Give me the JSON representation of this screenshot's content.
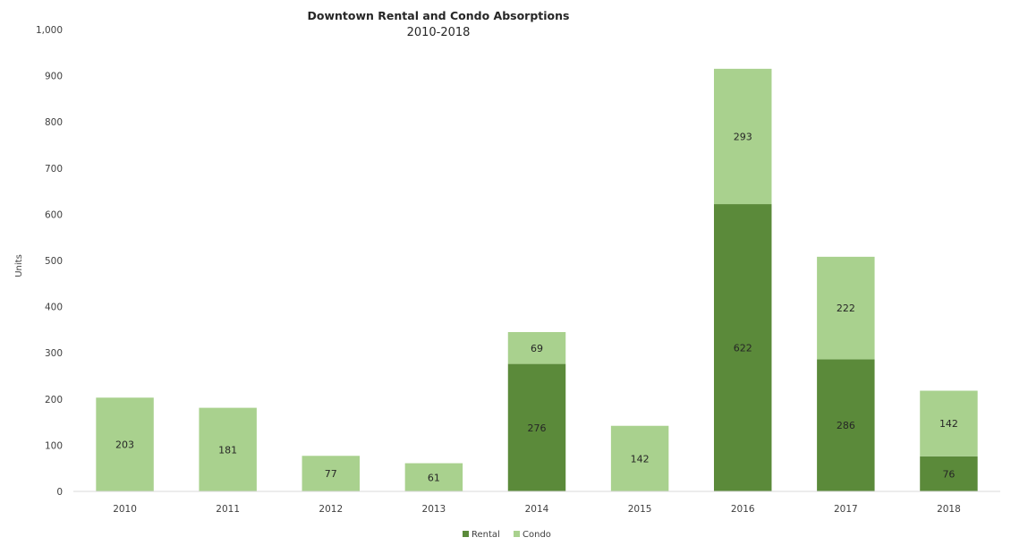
{
  "chart_data": {
    "type": "bar",
    "stacked": true,
    "title": "Downtown Rental and Condo Absorptions",
    "subtitle": "2010-2018",
    "xlabel": "",
    "ylabel": "Units",
    "ylim": [
      0,
      1000
    ],
    "yticks": [
      0,
      100,
      200,
      300,
      400,
      500,
      600,
      700,
      800,
      900,
      1000
    ],
    "ytick_labels": [
      "0",
      "100",
      "200",
      "300",
      "400",
      "500",
      "600",
      "700",
      "800",
      "900",
      "1,000"
    ],
    "grid": false,
    "legend_position": "bottom",
    "categories": [
      "2010",
      "2011",
      "2012",
      "2013",
      "2014",
      "2015",
      "2016",
      "2017",
      "2018"
    ],
    "series": [
      {
        "name": "Rental",
        "color": "#5b8a3a",
        "values": [
          0,
          0,
          0,
          0,
          276,
          0,
          622,
          286,
          76
        ]
      },
      {
        "name": "Condo",
        "color": "#a9d18e",
        "values": [
          203,
          181,
          77,
          61,
          69,
          142,
          293,
          222,
          142
        ]
      }
    ]
  }
}
